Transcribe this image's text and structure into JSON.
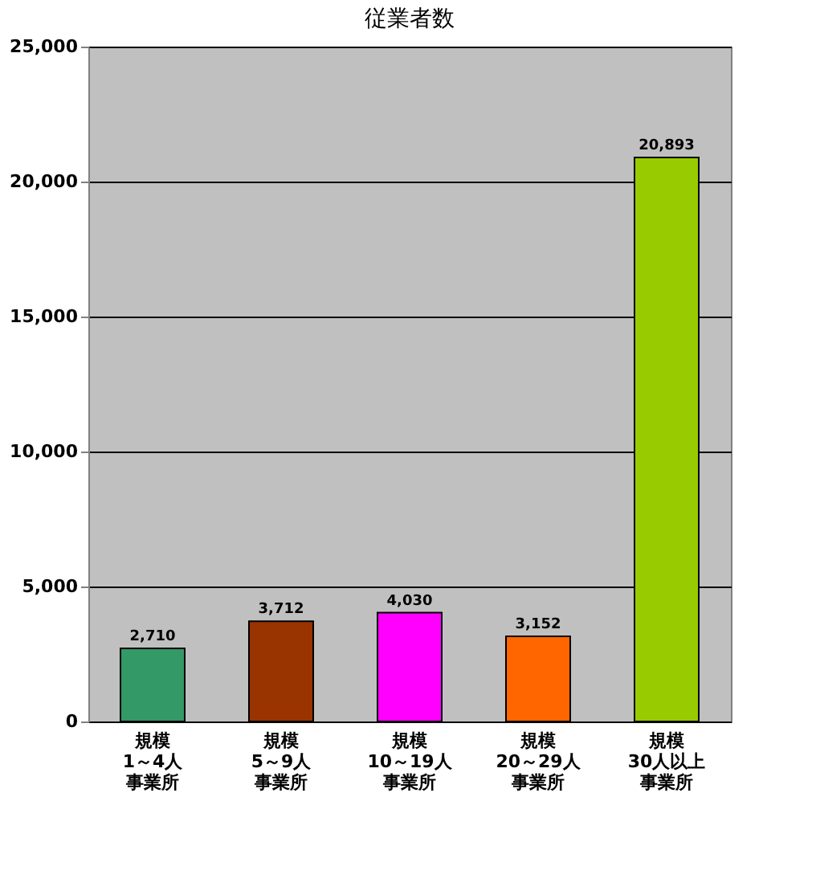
{
  "chart_data": {
    "type": "bar",
    "title": "従業者数",
    "categories": [
      "規模1～4人事業所",
      "規模5～9人事業所",
      "規模10～19人事業所",
      "規模20～29人事業所",
      "規模30人以上事業所"
    ],
    "values": [
      2710,
      3712,
      4030,
      3152,
      20893
    ],
    "value_labels": [
      "2,710",
      "3,712",
      "4,030",
      "3,152",
      "20,893"
    ],
    "colors": [
      "#339966",
      "#993300",
      "#ff00ff",
      "#ff6600",
      "#99cc00"
    ],
    "ylim": [
      0,
      25000
    ],
    "yticks": [
      0,
      {
        "value": 5000,
        "label": "5,000"
      },
      {
        "value": 10000,
        "label": "10,000"
      },
      {
        "value": 15000,
        "label": "15,000"
      },
      {
        "value": 20000,
        "label": "20,000"
      },
      {
        "value": 25000,
        "label": "25,000"
      }
    ],
    "grid": "y"
  }
}
